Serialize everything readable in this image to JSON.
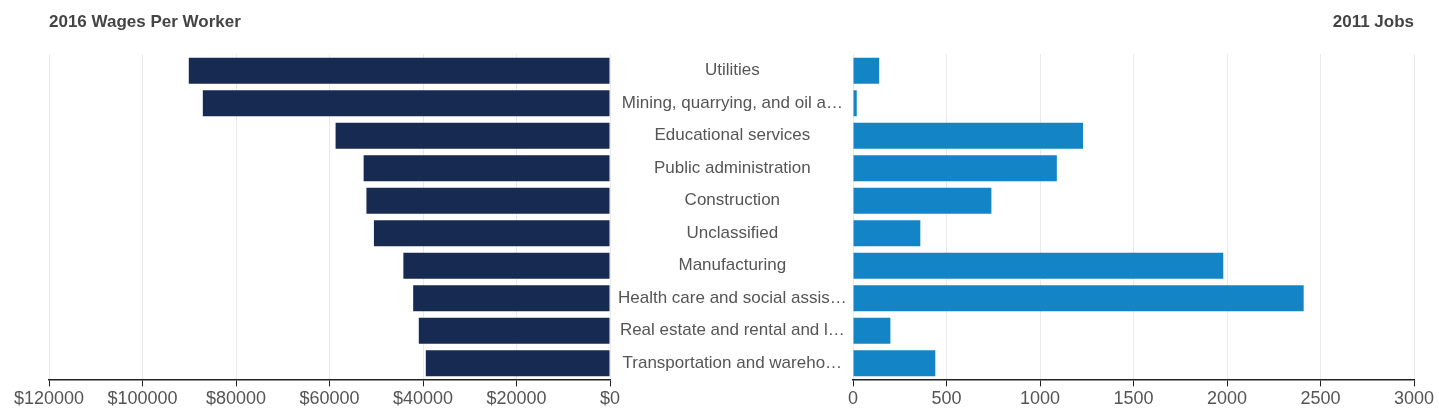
{
  "chart_data": [
    {
      "type": "bar",
      "orientation": "horizontal",
      "title": "2016 Wages Per Worker",
      "categories": [
        "Utilities",
        "Mining, quarrying, and oil a…",
        "Educational services",
        "Public administration",
        "Construction",
        "Unclassified",
        "Manufacturing",
        "Health care and social assis…",
        "Real estate and rental and l…",
        "Transportation and wareho…"
      ],
      "values": [
        90100,
        87100,
        58700,
        52700,
        52100,
        50500,
        44200,
        42100,
        40900,
        39400
      ],
      "color": "#172a52",
      "xlim": [
        120000,
        0
      ],
      "xticks": [
        {
          "value": 120000,
          "label": "$120000"
        },
        {
          "value": 100000,
          "label": "$100000"
        },
        {
          "value": 80000,
          "label": "$80000"
        },
        {
          "value": 60000,
          "label": "$60000"
        },
        {
          "value": 40000,
          "label": "$40000"
        },
        {
          "value": 20000,
          "label": "$20000"
        },
        {
          "value": 0,
          "label": "$0"
        }
      ],
      "grid": "x"
    },
    {
      "type": "bar",
      "orientation": "horizontal",
      "title": "2011 Jobs",
      "categories": [
        "Utilities",
        "Mining, quarrying, and oil a…",
        "Educational services",
        "Public administration",
        "Construction",
        "Unclassified",
        "Manufacturing",
        "Health care and social assis…",
        "Real estate and rental and l…",
        "Transportation and wareho…"
      ],
      "values": [
        140,
        20,
        1230,
        1090,
        740,
        360,
        1980,
        2410,
        200,
        440
      ],
      "color": "#1385c6",
      "xlim": [
        0,
        3000
      ],
      "xticks": [
        0,
        500,
        1000,
        1500,
        2000,
        2500,
        3000
      ],
      "grid": "x",
      "tick_labels": "x"
    }
  ]
}
